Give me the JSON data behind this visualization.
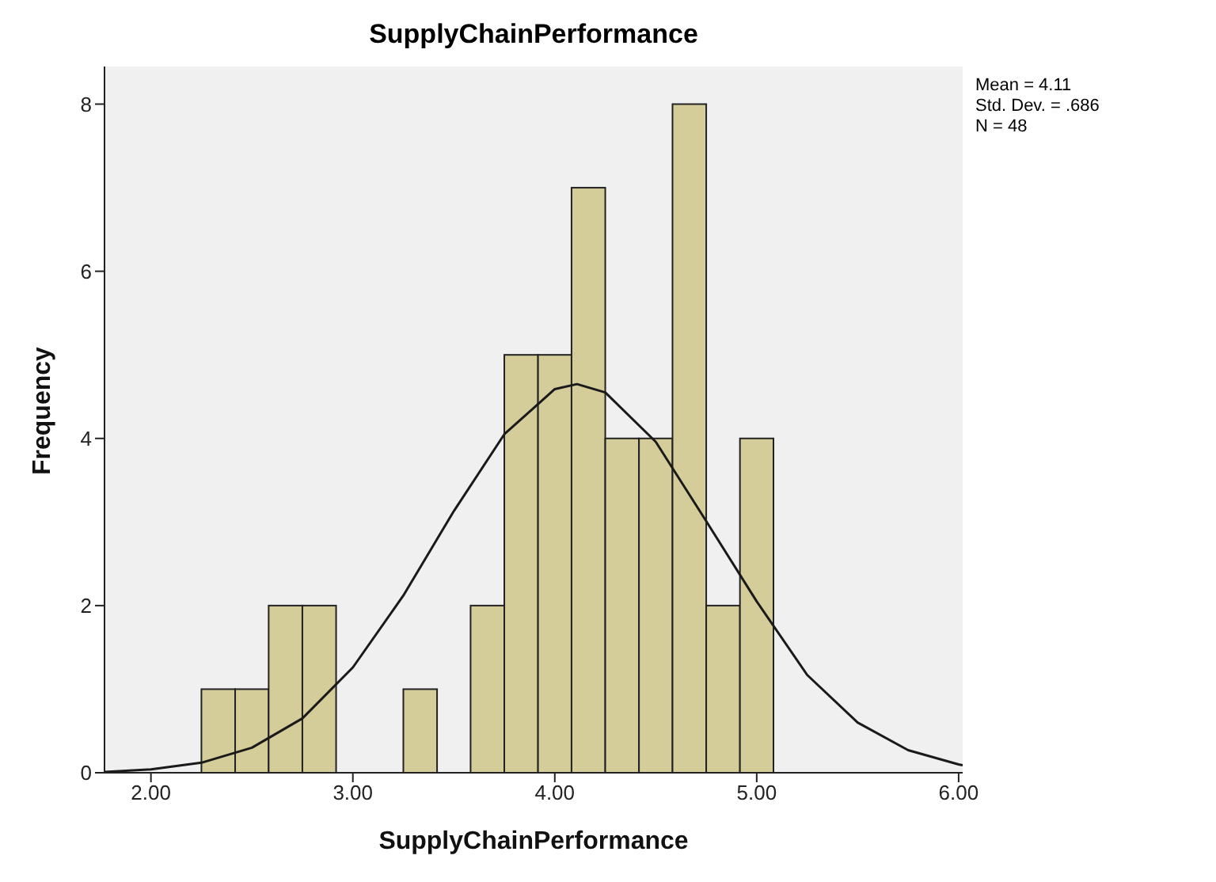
{
  "chart_data": {
    "type": "histogram",
    "title": "SupplyChainPerformance",
    "xlabel": "SupplyChainPerformance",
    "ylabel": "Frequency",
    "bins": [
      2.25,
      2.417,
      2.583,
      2.75,
      2.917,
      3.083,
      3.25,
      3.417,
      3.583,
      3.75,
      3.917,
      4.083,
      4.25,
      4.417,
      4.583,
      4.75,
      4.917,
      5.083
    ],
    "values": [
      1,
      1,
      2,
      2,
      0,
      0,
      1,
      0,
      2,
      5,
      5,
      7,
      4,
      4,
      8,
      2,
      4
    ],
    "color": "#d4cd9a",
    "series": [
      {
        "type": "line",
        "color": "#1a1a1a",
        "x": [
          1.77,
          2.0,
          2.25,
          2.5,
          2.75,
          3.0,
          3.25,
          3.5,
          3.75,
          4.0,
          4.11,
          4.25,
          4.5,
          4.75,
          5.0,
          5.25,
          5.5,
          5.75,
          6.0,
          6.02
        ],
        "values": [
          0.01,
          0.04,
          0.12,
          0.3,
          0.65,
          1.26,
          2.12,
          3.13,
          4.05,
          4.59,
          4.65,
          4.55,
          3.96,
          3.01,
          2.05,
          1.17,
          0.6,
          0.27,
          0.1,
          0.09
        ]
      }
    ],
    "xlim": [
      1.77,
      6.02
    ],
    "xticks": [
      {
        "value": 2,
        "label": "2.00"
      },
      {
        "value": 3,
        "label": "3.00"
      },
      {
        "value": 4,
        "label": "4.00"
      },
      {
        "value": 5,
        "label": "5.00"
      },
      {
        "value": 6,
        "label": "6.00"
      }
    ],
    "ylim": [
      0,
      8.45
    ],
    "yticks": [
      0,
      2,
      4,
      6,
      8
    ],
    "grid": false,
    "legend": false,
    "annotations": [
      "Mean = 4.11",
      "Std. Dev. = .686",
      "N = 48"
    ]
  }
}
